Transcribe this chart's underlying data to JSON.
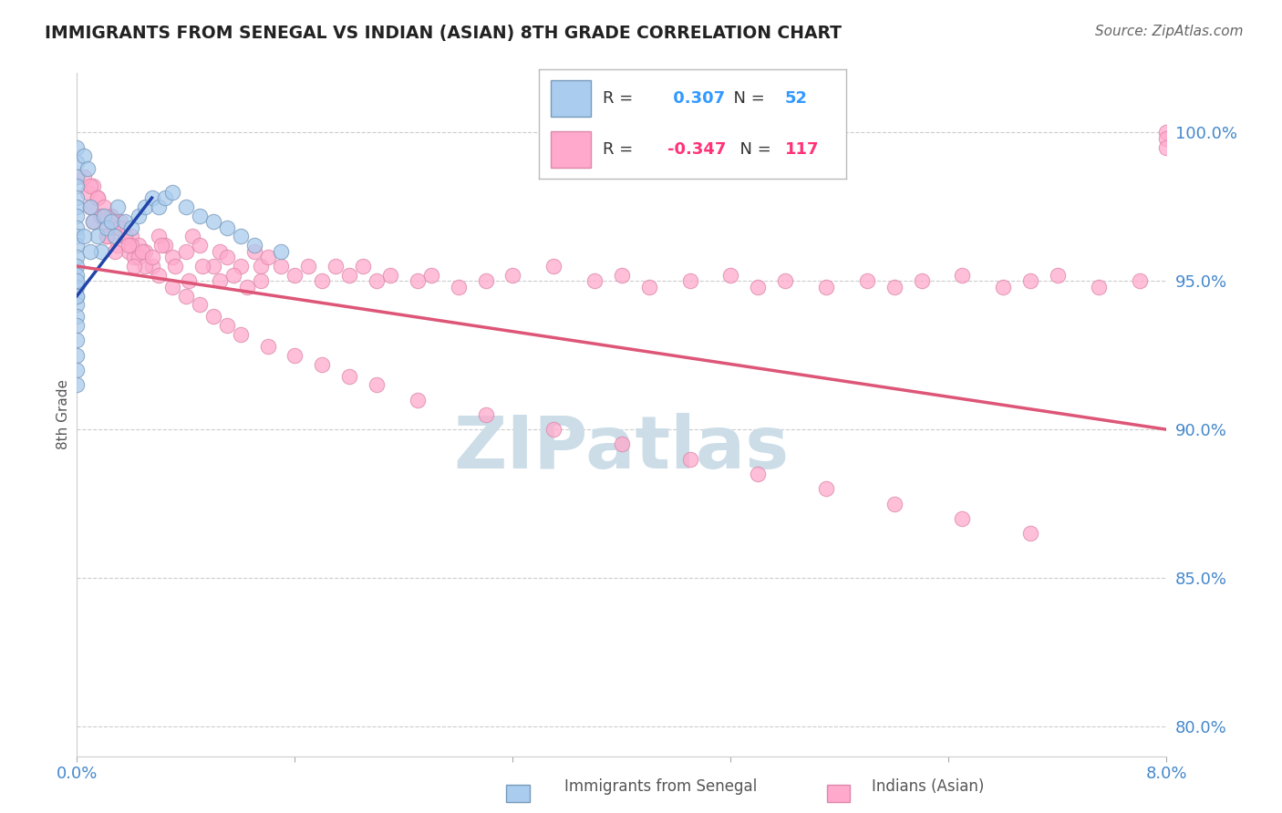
{
  "title": "IMMIGRANTS FROM SENEGAL VS INDIAN (ASIAN) 8TH GRADE CORRELATION CHART",
  "source_text": "Source: ZipAtlas.com",
  "ylabel": "8th Grade",
  "legend_label_blue": "Immigrants from Senegal",
  "legend_label_pink": "Indians (Asian)",
  "R_blue": 0.307,
  "N_blue": 52,
  "R_pink": -0.347,
  "N_pink": 117,
  "xlim": [
    0.0,
    8.0
  ],
  "ylim": [
    79.0,
    102.0
  ],
  "x_tick_positions": [
    0.0,
    1.6,
    3.2,
    4.8,
    6.4,
    8.0
  ],
  "x_tick_labels": [
    "0.0%",
    "",
    "",
    "",
    "",
    "8.0%"
  ],
  "y_right_ticks": [
    80.0,
    85.0,
    90.0,
    95.0,
    100.0
  ],
  "y_right_labels": [
    "80.0%",
    "85.0%",
    "90.0%",
    "95.0%",
    "100.0%"
  ],
  "grid_color": "#cccccc",
  "blue_dot_color": "#aaccee",
  "blue_edge_color": "#7799bb",
  "pink_dot_color": "#ffaacc",
  "pink_edge_color": "#dd88aa",
  "blue_line_color": "#2244aa",
  "pink_line_color": "#dd5577",
  "watermark_text": "ZIPatlas",
  "watermark_color": "#ccdde8",
  "background_color": "#ffffff",
  "blue_x": [
    0.0,
    0.0,
    0.0,
    0.0,
    0.0,
    0.0,
    0.0,
    0.0,
    0.0,
    0.0,
    0.0,
    0.0,
    0.0,
    0.0,
    0.0,
    0.0,
    0.0,
    0.0,
    0.0,
    0.0,
    0.05,
    0.08,
    0.1,
    0.12,
    0.15,
    0.18,
    0.2,
    0.22,
    0.25,
    0.28,
    0.3,
    0.35,
    0.4,
    0.45,
    0.5,
    0.55,
    0.6,
    0.65,
    0.7,
    0.8,
    0.9,
    1.0,
    1.1,
    1.2,
    1.3,
    1.5,
    0.0,
    0.0,
    0.0,
    0.0,
    0.05,
    0.1
  ],
  "blue_y": [
    99.5,
    99.0,
    98.5,
    98.2,
    97.8,
    97.5,
    97.2,
    96.8,
    96.5,
    96.2,
    95.8,
    95.5,
    95.2,
    94.8,
    94.5,
    94.2,
    93.8,
    93.5,
    93.0,
    92.5,
    99.2,
    98.8,
    97.5,
    97.0,
    96.5,
    96.0,
    97.2,
    96.8,
    97.0,
    96.5,
    97.5,
    97.0,
    96.8,
    97.2,
    97.5,
    97.8,
    97.5,
    97.8,
    98.0,
    97.5,
    97.2,
    97.0,
    96.8,
    96.5,
    96.2,
    96.0,
    95.0,
    94.5,
    92.0,
    91.5,
    96.5,
    96.0
  ],
  "pink_x": [
    0.08,
    0.1,
    0.12,
    0.15,
    0.18,
    0.2,
    0.22,
    0.25,
    0.28,
    0.3,
    0.32,
    0.35,
    0.38,
    0.4,
    0.42,
    0.45,
    0.5,
    0.55,
    0.6,
    0.65,
    0.7,
    0.8,
    0.85,
    0.9,
    1.0,
    1.05,
    1.1,
    1.2,
    1.3,
    1.35,
    1.4,
    1.5,
    1.6,
    1.7,
    1.8,
    1.9,
    2.0,
    2.1,
    2.2,
    2.3,
    2.5,
    2.6,
    2.8,
    3.0,
    3.2,
    3.5,
    3.8,
    4.0,
    4.2,
    4.5,
    4.8,
    5.0,
    5.2,
    5.5,
    5.8,
    6.0,
    6.2,
    6.5,
    6.8,
    7.0,
    7.2,
    7.5,
    7.8,
    8.0,
    8.0,
    8.0,
    0.05,
    0.1,
    0.15,
    0.2,
    0.25,
    0.3,
    0.35,
    0.4,
    0.45,
    0.5,
    0.6,
    0.7,
    0.8,
    0.9,
    1.0,
    1.1,
    1.2,
    1.4,
    1.6,
    1.8,
    2.0,
    2.2,
    2.5,
    3.0,
    3.5,
    4.0,
    4.5,
    5.0,
    5.5,
    6.0,
    6.5,
    7.0,
    0.12,
    0.18,
    0.22,
    0.28,
    0.32,
    0.38,
    0.42,
    0.48,
    0.55,
    0.62,
    0.72,
    0.82,
    0.92,
    1.05,
    1.15,
    1.25,
    1.35
  ],
  "pink_y": [
    98.0,
    97.5,
    98.2,
    97.8,
    97.2,
    97.0,
    96.5,
    97.2,
    96.8,
    96.2,
    97.0,
    96.5,
    96.0,
    96.5,
    95.8,
    96.2,
    96.0,
    95.5,
    96.5,
    96.2,
    95.8,
    96.0,
    96.5,
    96.2,
    95.5,
    96.0,
    95.8,
    95.5,
    96.0,
    95.5,
    95.8,
    95.5,
    95.2,
    95.5,
    95.0,
    95.5,
    95.2,
    95.5,
    95.0,
    95.2,
    95.0,
    95.2,
    94.8,
    95.0,
    95.2,
    95.5,
    95.0,
    95.2,
    94.8,
    95.0,
    95.2,
    94.8,
    95.0,
    94.8,
    95.0,
    94.8,
    95.0,
    95.2,
    94.8,
    95.0,
    95.2,
    94.8,
    95.0,
    100.0,
    99.8,
    99.5,
    98.5,
    98.2,
    97.8,
    97.5,
    97.2,
    96.8,
    96.5,
    96.2,
    95.8,
    95.5,
    95.2,
    94.8,
    94.5,
    94.2,
    93.8,
    93.5,
    93.2,
    92.8,
    92.5,
    92.2,
    91.8,
    91.5,
    91.0,
    90.5,
    90.0,
    89.5,
    89.0,
    88.5,
    88.0,
    87.5,
    87.0,
    86.5,
    97.0,
    97.2,
    96.5,
    96.0,
    96.8,
    96.2,
    95.5,
    96.0,
    95.8,
    96.2,
    95.5,
    95.0,
    95.5,
    95.0,
    95.2,
    94.8,
    95.0
  ]
}
